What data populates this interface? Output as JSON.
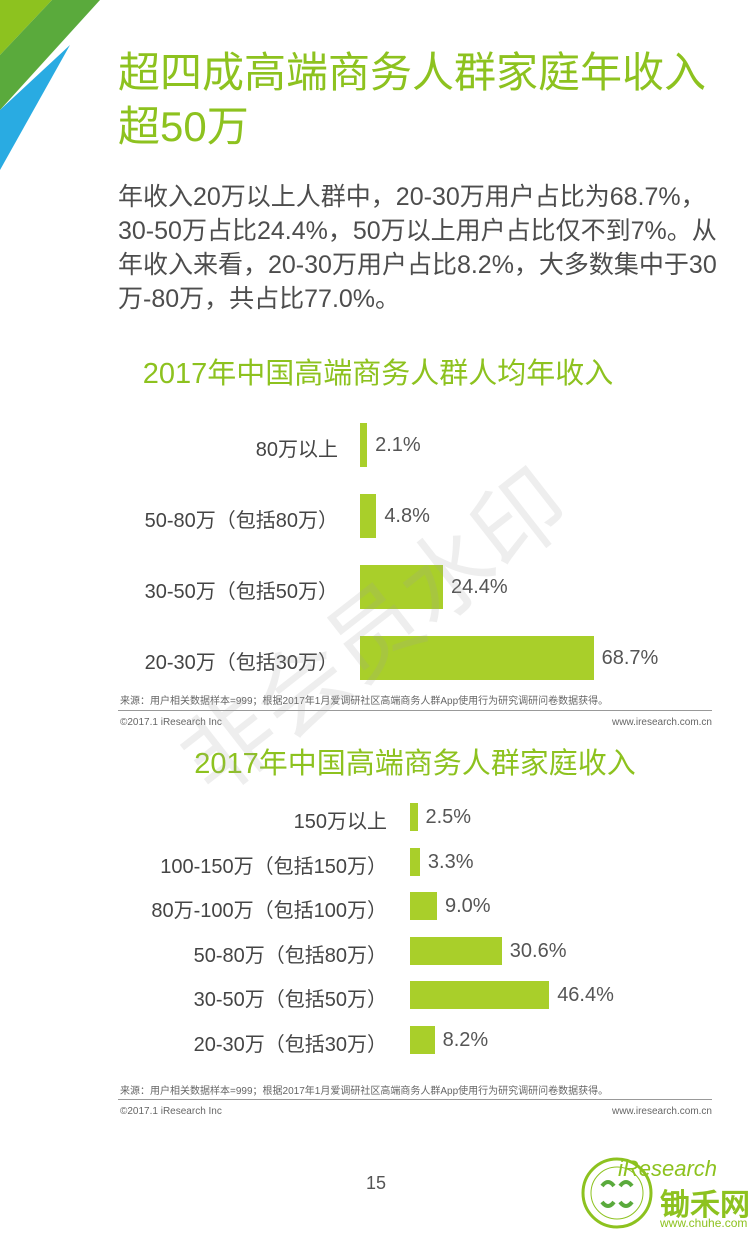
{
  "title": "超四成高端商务人群家庭年收入超50万",
  "intro": "年收入20万以上人群中，20-30万用户占比为68.7%，30-50万占比24.4%，50万以上用户占比仅不到7%。从年收入来看，20-30万用户占比8.2%，大多数集中于30万-80万，共占比77.0%。",
  "watermark": "非会员水印",
  "page_number": "15",
  "logo": {
    "brand": "iResearch",
    "site_name": "锄禾网",
    "site_url": "www.chuhe.com"
  },
  "colors": {
    "accent": "#8dc21f",
    "bar": "#a9cf2a"
  },
  "chart_data": [
    {
      "type": "bar",
      "orientation": "horizontal",
      "title": "2017年中国高端商务人群人均年收入",
      "categories": [
        "80万以上",
        "50-80万（包括80万）",
        "30-50万（包括50万）",
        "20-30万（包括30万）"
      ],
      "values": [
        2.1,
        4.8,
        24.4,
        68.7
      ],
      "value_labels": [
        "2.1%",
        "4.8%",
        "24.4%",
        "68.7%"
      ],
      "unit": "%",
      "source": "来源：用户相关数据样本=999；根据2017年1月爱调研社区高端商务人群App使用行为研究调研问卷数据获得。",
      "copyright": "©2017.1 iResearch Inc",
      "website": "www.iresearch.com.cn"
    },
    {
      "type": "bar",
      "orientation": "horizontal",
      "title": "2017年中国高端商务人群家庭收入",
      "categories": [
        "150万以上",
        "100-150万（包括150万）",
        "80万-100万（包括100万）",
        "50-80万（包括80万）",
        "30-50万（包括50万）",
        "20-30万（包括30万）"
      ],
      "values": [
        2.5,
        3.3,
        9.0,
        30.6,
        46.4,
        8.2
      ],
      "value_labels": [
        "2.5%",
        "3.3%",
        "9.0%",
        "30.6%",
        "46.4%",
        "8.2%"
      ],
      "unit": "%",
      "source": "来源：用户相关数据样本=999；根据2017年1月爱调研社区高端商务人群App使用行为研究调研问卷数据获得。",
      "copyright": "©2017.1 iResearch Inc",
      "website": "www.iresearch.com.cn"
    }
  ]
}
